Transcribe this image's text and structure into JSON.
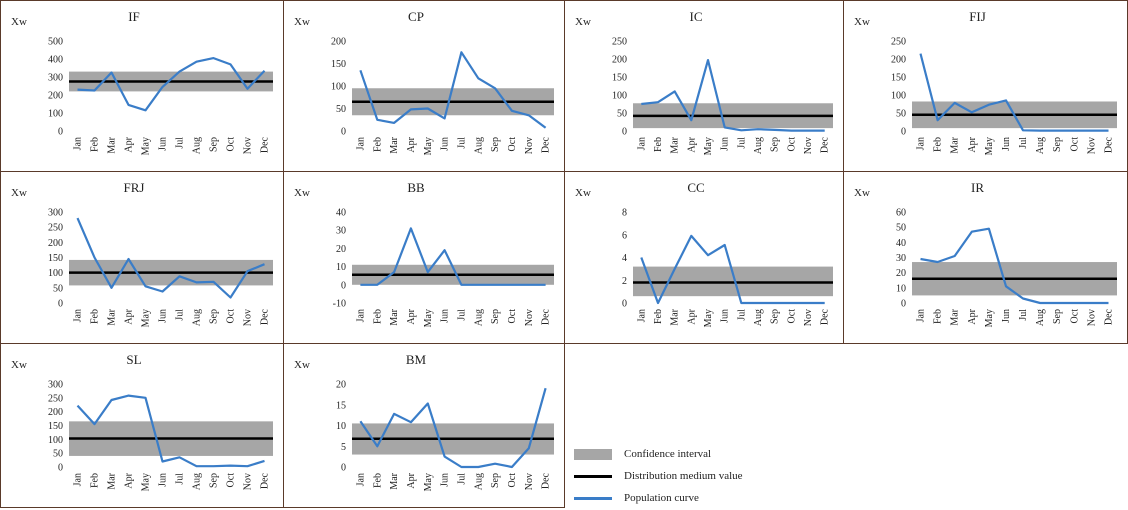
{
  "colors": {
    "interval": "#a6a6a6",
    "median": "#000000",
    "curve": "#3a7dc8",
    "frame": "#5a3a2a"
  },
  "legend": {
    "interval": "Confidence interval",
    "median": "Distribution medium value",
    "curve": "Population curve"
  },
  "chart_data": [
    {
      "type": "line",
      "title": "IF",
      "ylabel": "Xw",
      "ylim": [
        0,
        500
      ],
      "yticks": [
        0,
        100,
        200,
        300,
        400,
        500
      ],
      "categories": [
        "Jan",
        "Feb",
        "Mar",
        "Apr",
        "May",
        "Jun",
        "Jul",
        "Aug",
        "Sep",
        "Oct",
        "Nov",
        "Dec"
      ],
      "values": [
        230,
        225,
        325,
        145,
        115,
        245,
        330,
        385,
        405,
        370,
        235,
        335
      ],
      "median": 275,
      "interval": [
        220,
        330
      ]
    },
    {
      "type": "line",
      "title": "CP",
      "ylabel": "Xw",
      "ylim": [
        0,
        200
      ],
      "yticks": [
        0,
        50,
        100,
        150,
        200
      ],
      "categories": [
        "Jan",
        "Feb",
        "Mar",
        "Apr",
        "May",
        "Jun",
        "Jul",
        "Aug",
        "Sep",
        "Oct",
        "Nov",
        "Dec"
      ],
      "values": [
        135,
        25,
        18,
        48,
        50,
        28,
        175,
        117,
        95,
        45,
        35,
        7
      ],
      "median": 65,
      "interval": [
        35,
        95
      ]
    },
    {
      "type": "line",
      "title": "IC",
      "ylabel": "Xw",
      "ylim": [
        0,
        250
      ],
      "yticks": [
        0,
        50,
        100,
        150,
        200,
        250
      ],
      "categories": [
        "Jan",
        "Feb",
        "Mar",
        "Apr",
        "May",
        "Jun",
        "Jul",
        "Aug",
        "Sep",
        "Oct",
        "Nov",
        "Dec"
      ],
      "values": [
        75,
        80,
        110,
        30,
        197,
        10,
        2,
        5,
        3,
        1,
        1,
        1
      ],
      "median": 42,
      "interval": [
        8,
        77
      ]
    },
    {
      "type": "line",
      "title": "FIJ",
      "ylabel": "Xw",
      "ylim": [
        0,
        250
      ],
      "yticks": [
        0,
        50,
        100,
        150,
        200,
        250
      ],
      "categories": [
        "Jan",
        "Feb",
        "Mar",
        "Apr",
        "May",
        "Jun",
        "Jul",
        "Aug",
        "Sep",
        "Oct",
        "Nov",
        "Dec"
      ],
      "values": [
        215,
        30,
        78,
        52,
        73,
        85,
        2,
        1,
        1,
        1,
        1,
        1
      ],
      "median": 45,
      "interval": [
        8,
        82
      ]
    },
    {
      "type": "line",
      "title": "FRJ",
      "ylabel": "Xw",
      "ylim": [
        0,
        300
      ],
      "yticks": [
        0,
        50,
        100,
        150,
        200,
        250,
        300
      ],
      "categories": [
        "Jan",
        "Feb",
        "Mar",
        "Apr",
        "May",
        "Jun",
        "Jul",
        "Aug",
        "Sep",
        "Oct",
        "Nov",
        "Dec"
      ],
      "values": [
        280,
        150,
        50,
        145,
        55,
        38,
        88,
        68,
        70,
        18,
        105,
        128
      ],
      "median": 100,
      "interval": [
        58,
        142
      ]
    },
    {
      "type": "line",
      "title": "BB",
      "ylabel": "Xw",
      "ylim": [
        -10,
        40
      ],
      "yticks": [
        -10,
        0,
        10,
        20,
        30,
        40
      ],
      "categories": [
        "Jan",
        "Feb",
        "Mar",
        "Apr",
        "May",
        "Jun",
        "Jul",
        "Aug",
        "Sep",
        "Oct",
        "Nov",
        "Dec"
      ],
      "values": [
        0,
        0,
        7,
        31,
        7,
        19,
        0,
        0,
        0,
        0,
        0,
        0
      ],
      "median": 5.5,
      "interval": [
        0,
        11
      ]
    },
    {
      "type": "line",
      "title": "CC",
      "ylabel": "Xw",
      "ylim": [
        0,
        8
      ],
      "yticks": [
        0,
        2,
        4,
        6,
        8
      ],
      "categories": [
        "Jan",
        "Feb",
        "Mar",
        "Apr",
        "May",
        "Jun",
        "Jul",
        "Aug",
        "Sep",
        "Oct",
        "Nov",
        "Dec"
      ],
      "values": [
        4,
        0,
        3,
        5.9,
        4.2,
        5.1,
        0,
        0,
        0,
        0,
        0,
        0
      ],
      "median": 1.8,
      "interval": [
        0.6,
        3.2
      ]
    },
    {
      "type": "line",
      "title": "IR",
      "ylabel": "Xw",
      "ylim": [
        0,
        60
      ],
      "yticks": [
        0,
        10,
        20,
        30,
        40,
        50,
        60
      ],
      "categories": [
        "Jan",
        "Feb",
        "Mar",
        "Apr",
        "May",
        "Jun",
        "Jul",
        "Aug",
        "Sep",
        "Oct",
        "Nov",
        "Dec"
      ],
      "values": [
        29,
        27,
        31,
        47,
        49,
        11,
        3,
        0,
        0,
        0,
        0,
        0
      ],
      "median": 16,
      "interval": [
        5,
        27
      ]
    },
    {
      "type": "line",
      "title": "SL",
      "ylabel": "Xw",
      "ylim": [
        0,
        300
      ],
      "yticks": [
        0,
        50,
        100,
        150,
        200,
        250,
        300
      ],
      "categories": [
        "Jan",
        "Feb",
        "Mar",
        "Apr",
        "May",
        "Jun",
        "Jul",
        "Aug",
        "Sep",
        "Oct",
        "Nov",
        "Dec"
      ],
      "values": [
        222,
        155,
        242,
        258,
        250,
        20,
        35,
        3,
        3,
        5,
        3,
        22
      ],
      "median": 103,
      "interval": [
        40,
        165
      ]
    },
    {
      "type": "line",
      "title": "BM",
      "ylabel": "Xw",
      "ylim": [
        0,
        20
      ],
      "yticks": [
        0,
        5,
        10,
        15,
        20
      ],
      "categories": [
        "Jan",
        "Feb",
        "Mar",
        "Apr",
        "May",
        "Jun",
        "Jul",
        "Aug",
        "Sep",
        "Oct",
        "Nov",
        "Dec"
      ],
      "values": [
        11,
        5,
        12.8,
        10.8,
        15.3,
        2.5,
        0,
        0,
        0.8,
        0,
        4.5,
        19
      ],
      "median": 6.8,
      "interval": [
        3,
        10.5
      ]
    }
  ]
}
